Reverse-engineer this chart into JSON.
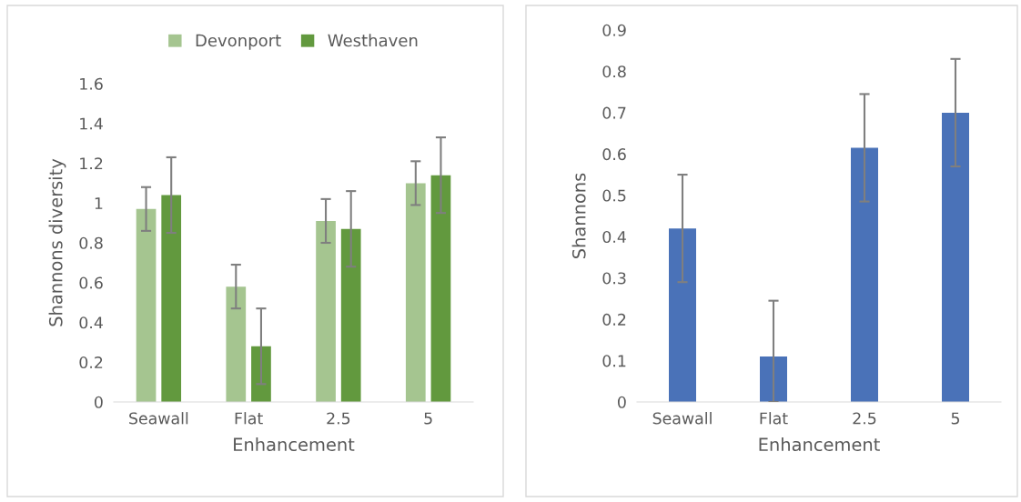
{
  "chart_data": [
    {
      "type": "bar",
      "categories": [
        "Seawall",
        "Flat",
        "2.5",
        "5"
      ],
      "xlabel": "Enhancement",
      "ylabel": "Shannons diversity",
      "ylim": [
        0,
        1.6
      ],
      "yticks": [
        0,
        0.2,
        0.4,
        0.6,
        0.8,
        1,
        1.2,
        1.4,
        1.6
      ],
      "grid": false,
      "legend": "top",
      "series": [
        {
          "name": "Devonport",
          "color": "#a5c590",
          "values": [
            0.97,
            0.58,
            0.91,
            1.1
          ],
          "errors": [
            0.11,
            0.11,
            0.11,
            0.11
          ]
        },
        {
          "name": "Westhaven",
          "color": "#62993e",
          "values": [
            1.04,
            0.28,
            0.87,
            1.14
          ],
          "errors": [
            0.19,
            0.19,
            0.19,
            0.19
          ]
        }
      ]
    },
    {
      "type": "bar",
      "categories": [
        "Seawall",
        "Flat",
        "2.5",
        "5"
      ],
      "xlabel": "Enhancement",
      "ylabel": "Shannons",
      "ylim": [
        0,
        0.9
      ],
      "yticks": [
        0,
        0.1,
        0.2,
        0.3,
        0.4,
        0.5,
        0.6,
        0.7,
        0.8,
        0.9
      ],
      "grid": false,
      "series": [
        {
          "color": "#4a72b8",
          "values": [
            0.42,
            0.11,
            0.615,
            0.7
          ],
          "errors": [
            0.13,
            [
              0,
              0.245
            ],
            0.13,
            0.13
          ]
        }
      ]
    }
  ]
}
